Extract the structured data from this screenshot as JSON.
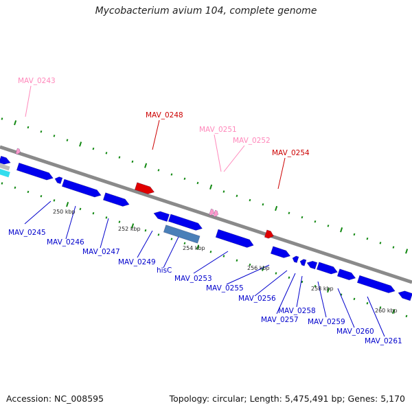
{
  "title": "Mycobacterium avium 104, complete genome",
  "footer": {
    "accession": "Accession: NC_008595",
    "topology": "Topology: circular; Length: 5,475,491 bp; Genes: 5,170"
  },
  "colors": {
    "backbone": "#888888",
    "forward_gene": "#0000ee",
    "reverse_gene": "#0000ee",
    "rna_gene": "#e00000",
    "pseudo_gene": "#ff99cc",
    "ruler_dots": "#118811",
    "blue_label": "#0000cc",
    "red_label": "#cc0000",
    "pink_label": "#ff88bb"
  },
  "ticks": [
    "250 kbp",
    "252 kbp",
    "254 kbp",
    "256 kbp",
    "258 kbp",
    "260 kbp"
  ],
  "labels_above": [
    {
      "text": "MAV_0243",
      "color": "pink"
    },
    {
      "text": "MAV_0248",
      "color": "red"
    },
    {
      "text": "MAV_0251",
      "color": "pink"
    },
    {
      "text": "MAV_0252",
      "color": "pink"
    },
    {
      "text": "MAV_0254",
      "color": "red"
    }
  ],
  "labels_below": [
    "MAV_0245",
    "MAV_0246",
    "MAV_0247",
    "MAV_0249",
    "hisC",
    "MAV_0253",
    "MAV_0255",
    "MAV_0256",
    "MAV_0257",
    "MAV_0258",
    "MAV_0259",
    "MAV_0260",
    "MAV_0261"
  ]
}
